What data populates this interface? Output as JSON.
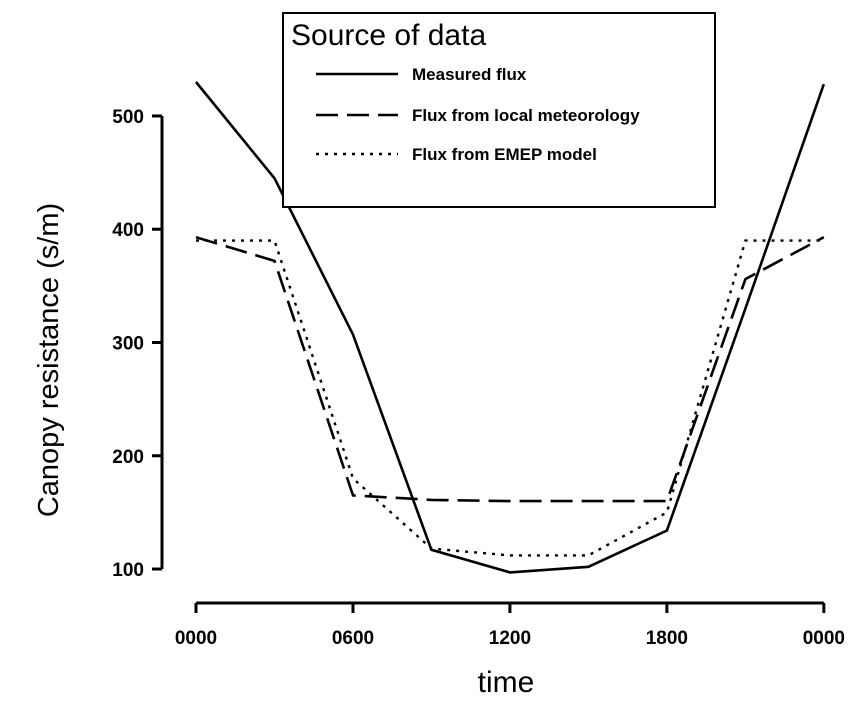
{
  "chart_data": {
    "type": "line",
    "title": "",
    "xlabel": "time",
    "ylabel": "Canopy resistance (s/m)",
    "x": [
      0,
      3,
      6,
      9,
      12,
      15,
      18,
      21,
      24
    ],
    "x_ticks": [
      {
        "value": 0,
        "label": "0000"
      },
      {
        "value": 6,
        "label": "0600"
      },
      {
        "value": 12,
        "label": "1200"
      },
      {
        "value": 18,
        "label": "1800"
      },
      {
        "value": 24,
        "label": "0000"
      }
    ],
    "y_ticks": [
      100,
      200,
      300,
      400,
      500
    ],
    "xlim": [
      -1.3,
      25
    ],
    "ylim": [
      70,
      560
    ],
    "grid": false,
    "legend": {
      "title": "Source of data",
      "placement": "top-center"
    },
    "series": [
      {
        "name": "Measured flux",
        "style": "solid",
        "x": [
          0,
          3,
          6,
          9,
          12,
          15,
          18,
          21,
          24
        ],
        "values": [
          530,
          445,
          307,
          117,
          97,
          102,
          134,
          330,
          528
        ]
      },
      {
        "name": "Flux from local meteorology",
        "style": "dashed",
        "x": [
          0,
          3,
          6,
          9,
          12,
          15,
          18,
          21,
          24
        ],
        "values": [
          393,
          372,
          165,
          161,
          160,
          160,
          160,
          356,
          393
        ]
      },
      {
        "name": "Flux from EMEP model",
        "style": "dotted",
        "x": [
          0,
          3,
          6,
          9,
          12,
          15,
          18,
          21,
          24
        ],
        "values": [
          390,
          390,
          180,
          118,
          112,
          112,
          150,
          390,
          390
        ]
      }
    ]
  }
}
